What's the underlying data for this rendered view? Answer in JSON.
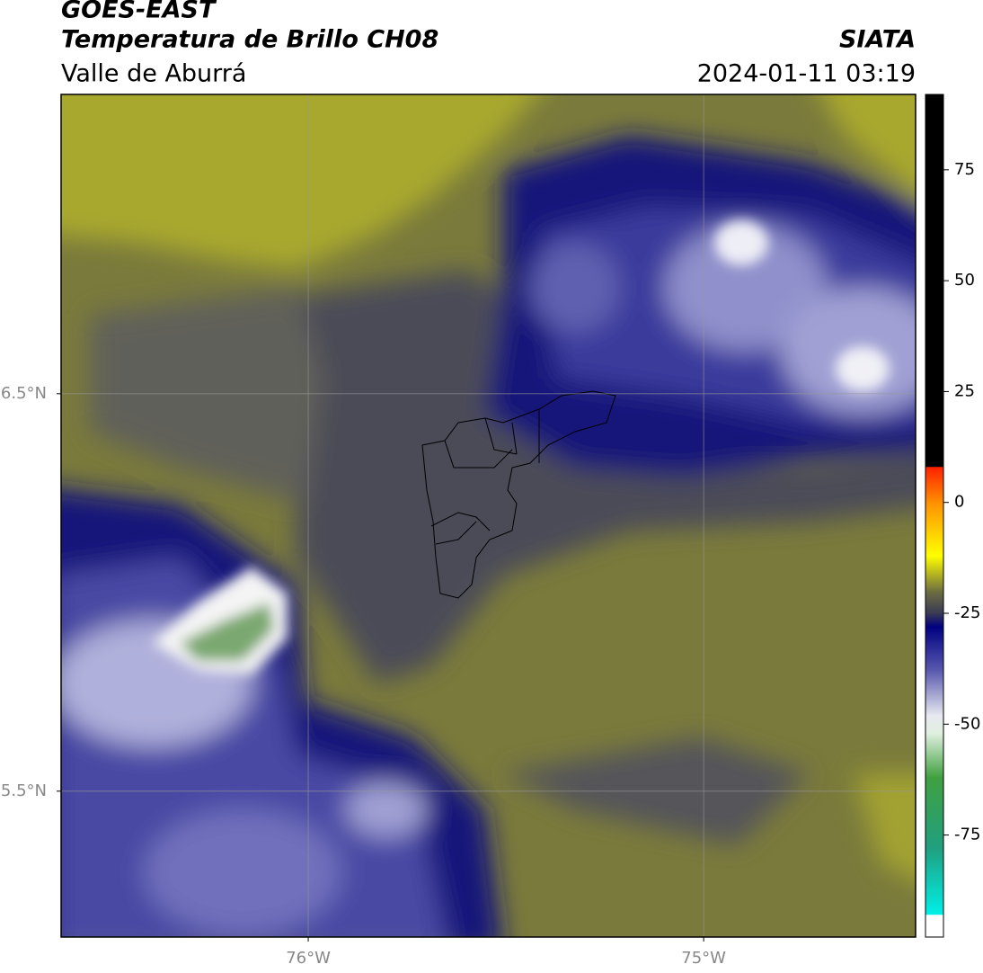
{
  "header": {
    "title": "GOES-EAST",
    "subtitle": "Temperatura de Brillo CH08",
    "region": "Valle de Aburrá",
    "source": "SIATA",
    "datetime": "2024-01-11 03:19"
  },
  "map": {
    "xlim": [
      -76.625,
      -74.464
    ],
    "ylim": [
      5.133,
      7.253
    ],
    "xticks": [
      {
        "value": -76,
        "label": "76°W"
      },
      {
        "value": -75,
        "label": "75°W"
      }
    ],
    "yticks": [
      {
        "value": 6.5,
        "label": "6.5°N"
      },
      {
        "value": 5.5,
        "label": "5.5°N"
      }
    ],
    "grid": true
  },
  "colorbar": {
    "lim": [
      -98,
      92
    ],
    "ticks": [
      75,
      50,
      25,
      0,
      -25,
      -50,
      -75
    ],
    "stops": [
      {
        "value": 92,
        "color": "#000000"
      },
      {
        "value": 8,
        "color": "#000000"
      },
      {
        "value": 8,
        "color": "#ff2000"
      },
      {
        "value": 0,
        "color": "#ff9000"
      },
      {
        "value": -12,
        "color": "#ffff00"
      },
      {
        "value": -20,
        "color": "#6e6e40"
      },
      {
        "value": -25,
        "color": "#3a3a55"
      },
      {
        "value": -28,
        "color": "#000080"
      },
      {
        "value": -38,
        "color": "#5a5ab0"
      },
      {
        "value": -48,
        "color": "#e8e8f0"
      },
      {
        "value": -52,
        "color": "#e0f0e0"
      },
      {
        "value": -62,
        "color": "#40a040"
      },
      {
        "value": -78,
        "color": "#20a080"
      },
      {
        "value": -93,
        "color": "#00f0e8"
      },
      {
        "value": -93,
        "color": "#ffffff"
      },
      {
        "value": -98,
        "color": "#ffffff"
      }
    ]
  }
}
